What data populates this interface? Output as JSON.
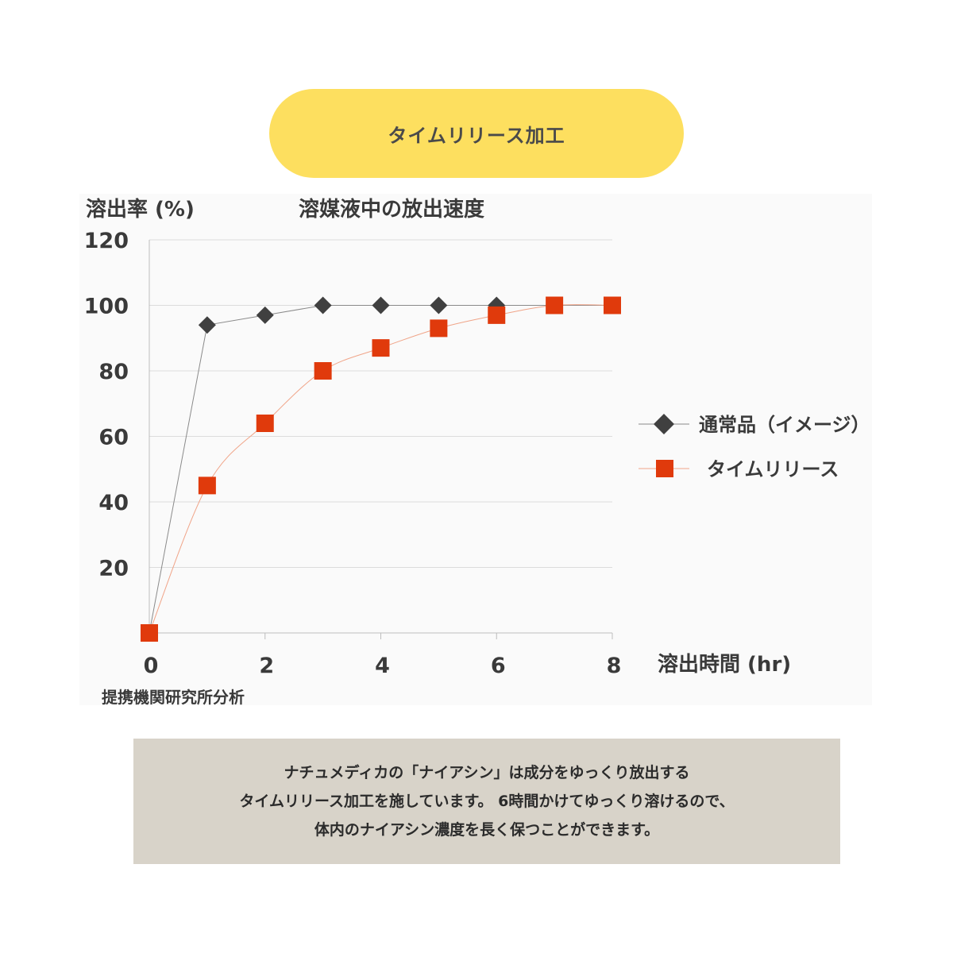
{
  "header": {
    "badge_label": "タイムリリース加工"
  },
  "chart_data": {
    "type": "line",
    "title": "溶媒液中の放出速度",
    "ylabel": "溶出率 (%)",
    "xlabel": "溶出時間 (hr)",
    "x_ticks": [
      0,
      2,
      4,
      6,
      8
    ],
    "y_ticks": [
      20,
      40,
      60,
      80,
      100,
      120
    ],
    "xlim": [
      0,
      8
    ],
    "ylim": [
      0,
      120
    ],
    "grid": true,
    "legend_position": "right",
    "series": [
      {
        "name": "通常品（イメージ）",
        "marker": "diamond",
        "color": "#404040",
        "x": [
          0,
          1,
          2,
          3,
          4,
          5,
          6,
          7,
          8
        ],
        "values": [
          0,
          94,
          97,
          100,
          100,
          100,
          100,
          100,
          100
        ]
      },
      {
        "name": "タイムリリース",
        "marker": "square",
        "color": "#e03a0c",
        "x": [
          0,
          1,
          2,
          3,
          4,
          5,
          6,
          7,
          8
        ],
        "values": [
          0,
          45,
          64,
          80,
          87,
          93,
          97,
          100,
          100
        ]
      }
    ],
    "source_note": "提携機関研究所分析"
  },
  "description": {
    "lines": [
      "ナチュメディカの「ナイアシン」は成分をゆっくり放出する",
      "タイムリリース加工を施しています。 6時間かけてゆっくり溶けるので、",
      "体内のナイアシン濃度を長く保つことができます。"
    ]
  }
}
